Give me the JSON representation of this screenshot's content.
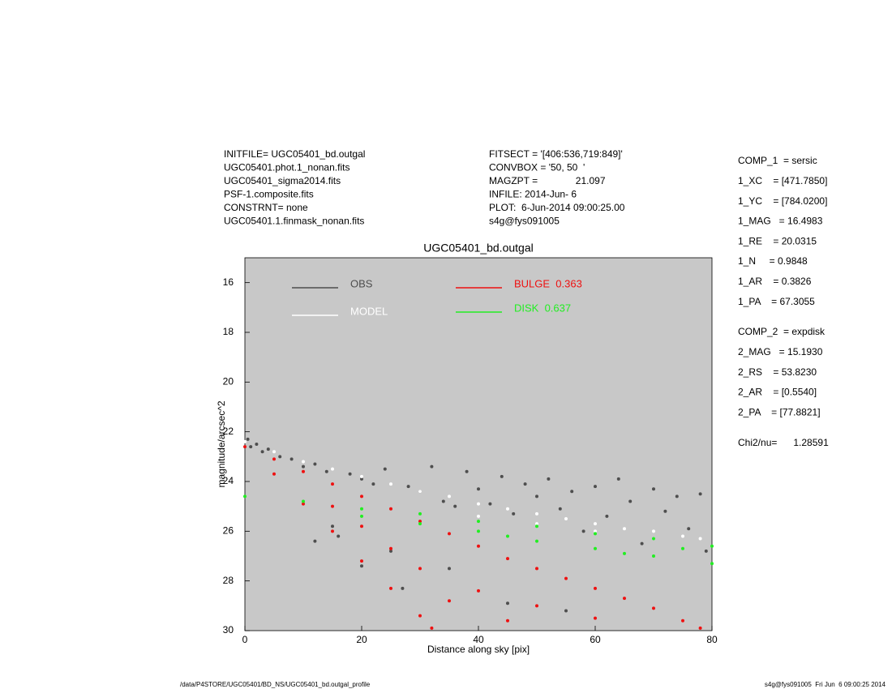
{
  "header": {
    "left": [
      "INITFILE= UGC05401_bd.outgal",
      "UGC05401.phot.1_nonan.fits",
      "UGC05401_sigma2014.fits",
      "PSF-1.composite.fits",
      "CONSTRNT= none",
      "UGC05401.1.finmask_nonan.fits"
    ],
    "middle": [
      "FITSECT = '[406:536,719:849]'",
      "CONVBOX = '50, 50  '",
      "MAGZPT =              21.097",
      "INFILE: 2014-Jun- 6",
      "PLOT:  6-Jun-2014 09:00:25.00",
      "s4g@fys091005"
    ]
  },
  "params": {
    "comp1": [
      "COMP_1  = sersic",
      "1_XC    = [471.7850]",
      "1_YC    = [784.0200]",
      "1_MAG   = 16.4983",
      "1_RE    = 20.0315",
      "1_N     = 0.9848",
      "1_AR    = 0.3826",
      "1_PA    = 67.3055"
    ],
    "comp2": [
      "COMP_2  = expdisk",
      "2_MAG   = 15.1930",
      "2_RS    = 53.8230",
      "2_AR    = [0.5540]",
      "2_PA    = [77.8821]"
    ],
    "chi": "Chi2/nu=      1.28591"
  },
  "footer": {
    "left": "/data/P4STORE/UGC05401/BD_NS/UGC05401_bd.outgal_profile",
    "right": "s4g@fys091005  Fri Jun  6 09:00:25 2014"
  },
  "chart_data": {
    "type": "scatter",
    "title": "UGC05401_bd.outgal",
    "xlabel": "Distance along sky [pix]",
    "ylabel": "magnitude/arcsec^2",
    "xlim": [
      0,
      80
    ],
    "ylim": [
      30,
      15
    ],
    "xticks": [
      0,
      20,
      40,
      60,
      80
    ],
    "yticks": [
      16,
      18,
      20,
      22,
      24,
      26,
      28,
      30
    ],
    "background": "#c8c8c8",
    "series": [
      {
        "name": "OBS",
        "color": "#4e4e4e",
        "x": [
          0.5,
          1,
          2,
          3,
          4,
          6,
          8,
          10,
          12,
          14,
          15,
          16,
          18,
          20,
          22,
          24,
          25,
          27,
          28,
          30,
          32,
          34,
          36,
          38,
          40,
          42,
          44,
          46,
          48,
          50,
          52,
          54,
          56,
          58,
          60,
          62,
          64,
          66,
          68,
          70,
          72,
          74,
          76,
          78,
          79,
          45,
          55,
          35,
          20,
          12
        ],
        "values": [
          22.3,
          22.6,
          22.5,
          22.8,
          22.7,
          23.0,
          23.1,
          23.4,
          23.3,
          23.6,
          25.8,
          26.2,
          23.7,
          23.9,
          24.1,
          23.5,
          26.8,
          28.3,
          24.2,
          24.4,
          23.4,
          24.8,
          25.0,
          23.6,
          24.3,
          24.9,
          23.8,
          25.3,
          24.1,
          24.6,
          23.9,
          25.1,
          24.4,
          26.0,
          24.2,
          25.4,
          23.9,
          24.8,
          26.5,
          24.3,
          25.2,
          24.6,
          25.9,
          24.5,
          26.8,
          28.9,
          29.2,
          27.5,
          27.4,
          26.4
        ]
      },
      {
        "name": "MODEL",
        "color": "#ffffff",
        "x": [
          0,
          5,
          10,
          15,
          20,
          25,
          30,
          35,
          40,
          45,
          50,
          55,
          60,
          65,
          70,
          75,
          78,
          40,
          50,
          60,
          70
        ],
        "values": [
          22.4,
          22.8,
          23.2,
          23.5,
          23.8,
          24.1,
          24.4,
          24.6,
          24.9,
          25.1,
          25.3,
          25.5,
          25.7,
          25.9,
          26.0,
          26.2,
          26.3,
          25.4,
          25.7,
          26.0,
          26.3
        ]
      },
      {
        "name": "BULGE  0.363",
        "color": "#ee1111",
        "x": [
          0,
          5,
          10,
          15,
          20,
          25,
          30,
          35,
          40,
          45,
          50,
          55,
          60,
          65,
          70,
          75,
          78,
          5,
          10,
          15,
          20,
          25,
          30,
          32,
          20,
          30,
          40,
          50,
          60,
          35,
          45,
          25,
          15
        ],
        "values": [
          22.6,
          23.1,
          23.6,
          24.1,
          24.6,
          25.1,
          25.6,
          26.1,
          26.6,
          27.1,
          27.5,
          27.9,
          28.3,
          28.7,
          29.1,
          29.6,
          29.9,
          23.7,
          24.9,
          26.0,
          27.2,
          28.3,
          29.4,
          29.9,
          25.8,
          27.5,
          28.4,
          29.0,
          29.5,
          28.8,
          29.6,
          26.7,
          25.0
        ]
      },
      {
        "name": "DISK  0.637",
        "color": "#22ee22",
        "x": [
          0,
          10,
          20,
          30,
          40,
          50,
          60,
          70,
          80,
          20,
          30,
          40,
          50,
          60,
          70,
          80,
          45,
          65,
          75
        ],
        "values": [
          24.6,
          24.8,
          25.1,
          25.3,
          25.6,
          25.8,
          26.1,
          26.3,
          26.6,
          25.4,
          25.7,
          26.0,
          26.4,
          26.7,
          27.0,
          27.3,
          26.2,
          26.9,
          26.7
        ]
      }
    ]
  }
}
